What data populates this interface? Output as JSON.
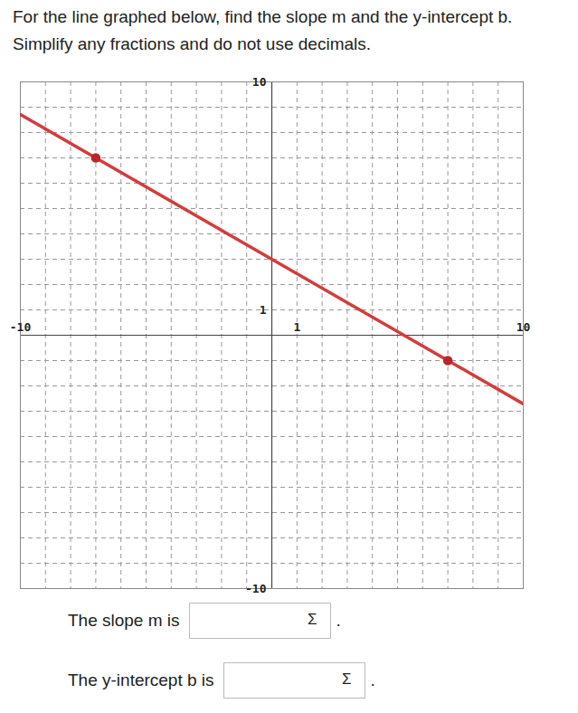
{
  "header": {
    "question": "For the line graphed below, find the slope m and the y-intercept b.",
    "instruction": "Simplify any fractions and do not use decimals."
  },
  "chart_data": {
    "type": "line",
    "xlim": [
      -10,
      10
    ],
    "ylim": [
      -10,
      10
    ],
    "xticks": [
      -10,
      1,
      10
    ],
    "yticks": [
      -10,
      1,
      10
    ],
    "grid": true,
    "series": [
      {
        "type": "line",
        "color": "#d43c3c",
        "x": [
          -10,
          10
        ],
        "values": [
          8.71,
          -2.71
        ]
      },
      {
        "type": "scatter",
        "color": "#b8282a",
        "marker": "circle",
        "x": [
          -7,
          7
        ],
        "values": [
          7,
          -1
        ]
      }
    ]
  },
  "answers": [
    {
      "label": "The slope m is",
      "button": "Σ",
      "end": "."
    },
    {
      "label": "The y-intercept b is",
      "button": "Σ",
      "end": "."
    }
  ]
}
